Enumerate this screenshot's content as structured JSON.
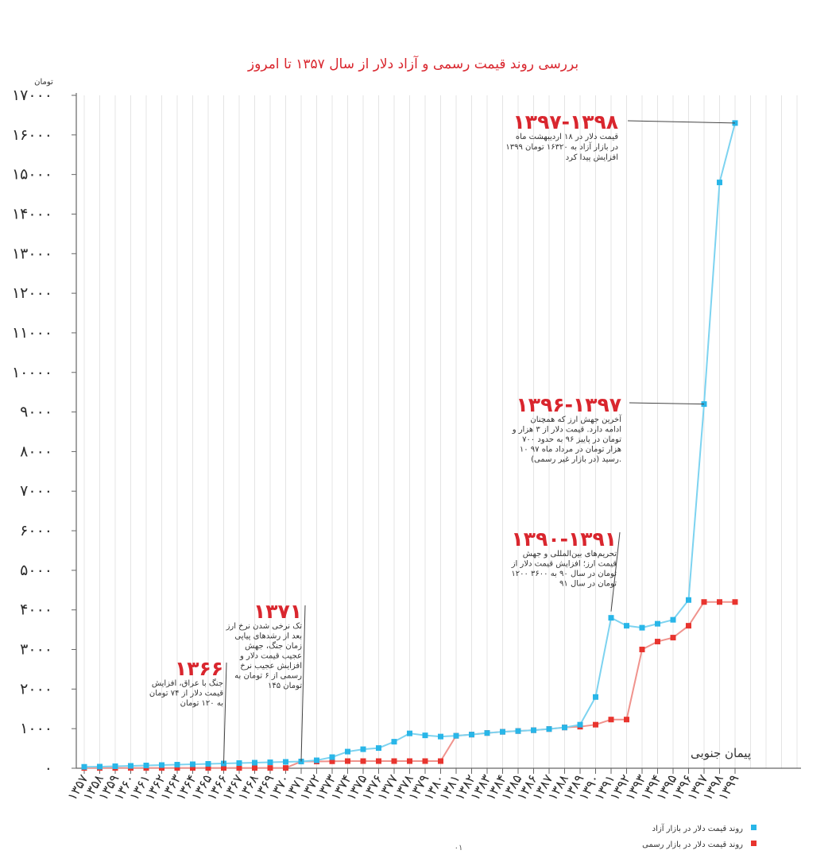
{
  "chart_data": {
    "type": "line",
    "title": "بررسی روند قیمت رسمی و آزاد دلار از سال ۱۳۵۷ تا امروز",
    "ylabel": "تومان",
    "ylim": [
      0,
      17000
    ],
    "yticks": [
      {
        "value": 0,
        "label": "۰"
      },
      {
        "value": 1000,
        "label": "۱۰۰۰"
      },
      {
        "value": 2000,
        "label": "۲۰۰۰"
      },
      {
        "value": 3000,
        "label": "۳۰۰۰"
      },
      {
        "value": 4000,
        "label": "۴۰۰۰"
      },
      {
        "value": 5000,
        "label": "۵۰۰۰"
      },
      {
        "value": 6000,
        "label": "۶۰۰۰"
      },
      {
        "value": 7000,
        "label": "۷۰۰۰"
      },
      {
        "value": 8000,
        "label": "۸۰۰۰"
      },
      {
        "value": 9000,
        "label": "۹۰۰۰"
      },
      {
        "value": 10000,
        "label": "۱۰۰۰۰"
      },
      {
        "value": 11000,
        "label": "۱۱۰۰۰"
      },
      {
        "value": 12000,
        "label": "۱۲۰۰۰"
      },
      {
        "value": 13000,
        "label": "۱۳۰۰۰"
      },
      {
        "value": 14000,
        "label": "۱۴۰۰۰"
      },
      {
        "value": 15000,
        "label": "۱۵۰۰۰"
      },
      {
        "value": 16000,
        "label": "۱۶۰۰۰"
      },
      {
        "value": 17000,
        "label": "۱۷۰۰۰"
      }
    ],
    "categories": [
      "۱۳۵۷",
      "۱۳۵۸",
      "۱۳۵۹",
      "۱۳۶۰",
      "۱۳۶۱",
      "۱۳۶۲",
      "۱۳۶۳",
      "۱۳۶۴",
      "۱۳۶۵",
      "۱۳۶۶",
      "۱۳۶۷",
      "۱۳۶۸",
      "۱۳۶۹",
      "۱۳۷۰",
      "۱۳۷۱",
      "۱۳۷۲",
      "۱۳۷۳",
      "۱۳۷۴",
      "۱۳۷۵",
      "۱۳۷۶",
      "۱۳۷۷",
      "۱۳۷۸",
      "۱۳۷۹",
      "۱۳۸۰",
      "۱۳۸۱",
      "۱۳۸۲",
      "۱۳۸۳",
      "۱۳۸۴",
      "۱۳۸۵",
      "۱۳۸۶",
      "۱۳۸۷",
      "۱۳۸۸",
      "۱۳۸۹",
      "۱۳۹۰",
      "۱۳۹۱",
      "۱۳۹۲",
      "۱۳۹۳",
      "۱۳۹۴",
      "۱۳۹۵",
      "۱۳۹۶",
      "۱۳۹۷",
      "۱۳۹۸",
      "۱۳۹۹"
    ],
    "series": [
      {
        "name": "روند قیمت دلار در بازار آزاد",
        "color": "#29b6e8",
        "values": [
          35,
          40,
          50,
          60,
          70,
          80,
          90,
          100,
          110,
          120,
          130,
          140,
          150,
          160,
          170,
          200,
          280,
          420,
          480,
          510,
          670,
          880,
          830,
          800,
          820,
          850,
          890,
          920,
          940,
          960,
          990,
          1030,
          1100,
          1800,
          3800,
          3600,
          3550,
          3650,
          3750,
          4250,
          9200,
          14800,
          16300
        ]
      },
      {
        "name": "روند قیمت دلار در بازار رسمی",
        "color": "#e8342e",
        "values": [
          7,
          7,
          7,
          7,
          7,
          7,
          7,
          7,
          7,
          7,
          7,
          7,
          7,
          7,
          170,
          170,
          175,
          180,
          180,
          180,
          180,
          180,
          180,
          180,
          820,
          850,
          890,
          920,
          940,
          960,
          990,
          1030,
          1050,
          1100,
          1230,
          1230,
          3000,
          3200,
          3300,
          3600,
          4200,
          4200,
          4200
        ]
      }
    ],
    "annotations": [
      {
        "title": "۱۳۹۷-۱۳۹۸",
        "lines": [
          "قیمت دلار در ۱۸ اردیبهشت ماه",
          "۱۳۹۹ در بازار آزاد به ۱۶۳۲۰ تومان",
          "افزایش پیدا کرد"
        ]
      },
      {
        "title": "۱۳۹۶-۱۳۹۷",
        "lines": [
          "آخرین جهش ارز که همچنان",
          "ادامه دارد. قیمت دلار از ۳ هزار و",
          "۷۰۰ تومان در پاییز ۹۶ به حدود",
          "۱۰ هزار تومان در مرداد ماه ۹۷",
          "(در بازار غیر رسمی) رسید."
        ]
      },
      {
        "title": "۱۳۹۰-۱۳۹۱",
        "lines": [
          "تحریم‌های بین‌المللی و جهش",
          "قیمت ارز؛ افزایش قیمت دلار از",
          "۱۲۰۰ تومان در سال ۹۰ به ۳۶۰۰",
          "تومان در سال ۹۱"
        ]
      },
      {
        "title": "۱۳۷۱",
        "lines": [
          "تک نرخی شدن نرخ ارز",
          "بعد از رشدهای پیاپی",
          "زمان جنگ، جهش",
          "عجیب قیمت دلار و",
          "افزایش عجیب نرخ",
          "رسمی از ۶ تومان به",
          "۱۴۵ تومان"
        ]
      },
      {
        "title": "۱۳۶۶",
        "lines": [
          "جنگ با عراق، افزایش",
          "قیمت دلار از ۷۴ تومان",
          "به ۱۲۰ تومان"
        ]
      }
    ],
    "grid": true,
    "legend_position": "bottom-right"
  },
  "credit": "پیمان جنوبی",
  "page_number": "۰۱"
}
